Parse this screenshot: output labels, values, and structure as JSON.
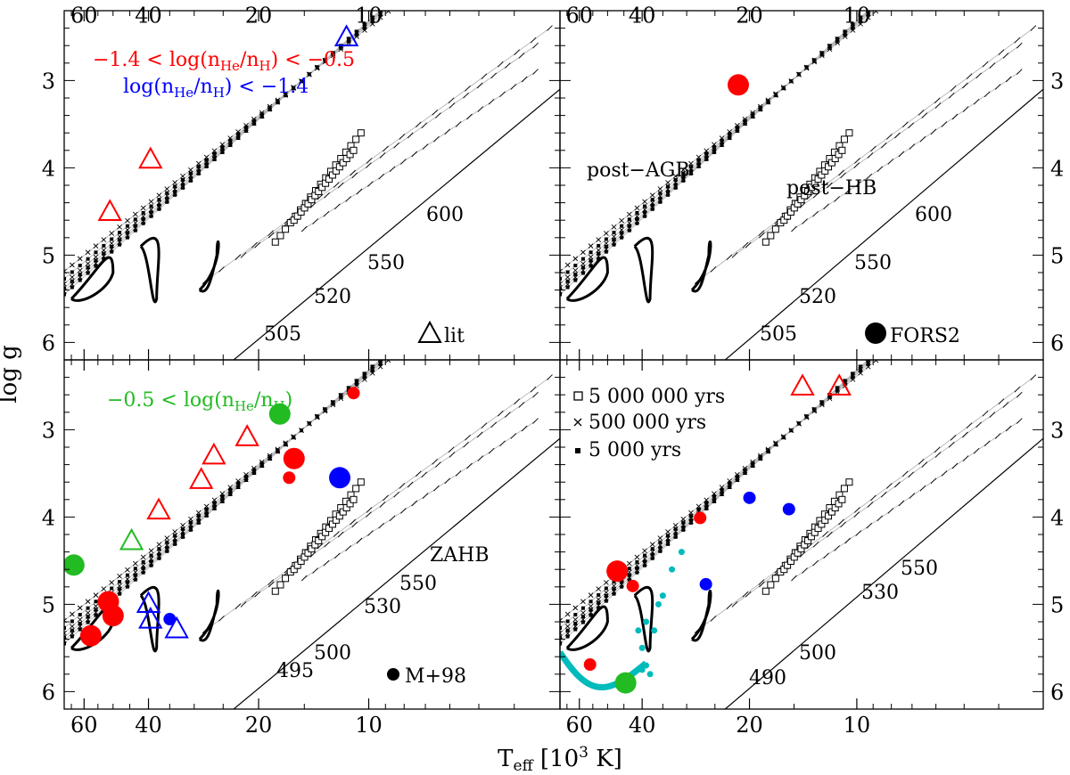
{
  "chart_data": {
    "type": "scatter",
    "axes": {
      "xlabel": "T_eff [10^3 K]",
      "xlabel_main": "T",
      "xlabel_sub": "eff",
      "xlabel_rest": " [10",
      "xlabel_sup": "3",
      "xlabel_end": " K]",
      "ylabel": "log g",
      "xlim": [
        68,
        3
      ],
      "ylim": [
        2.2,
        6.2
      ],
      "x_ticks": [
        60,
        40,
        20,
        10
      ],
      "y_ticks": [
        3,
        4,
        5,
        6
      ]
    },
    "colors": {
      "red": "#ff0000",
      "blue": "#0000ff",
      "green": "#22bb22",
      "cyan": "#00bbbb",
      "track": "#bbbbbb",
      "ink": "#000000"
    },
    "panels": [
      {
        "id": "top-left",
        "annotations": [
          {
            "text": "−1.4 < log(n",
            "sub": "He",
            "mid": "/n",
            "sub2": "H",
            "end": ") < −0.5",
            "color": "red"
          },
          {
            "text": "log(n",
            "sub": "He",
            "mid": "/n",
            "sub2": "H",
            "end": ") < −1.4",
            "color": "blue"
          }
        ],
        "legend": {
          "symbol": "triangle",
          "label": "lit"
        },
        "mass_labels": [
          "505",
          "520",
          "550",
          "600"
        ],
        "triangles": [
          {
            "teff": 51,
            "logg": 4.5,
            "color": "red"
          },
          {
            "teff": 39.5,
            "logg": 3.9,
            "color": "red"
          },
          {
            "teff": 11.5,
            "logg": 2.5,
            "color": "blue"
          }
        ],
        "circles": []
      },
      {
        "id": "top-right",
        "labels": [
          "post−AGB",
          "post−HB"
        ],
        "legend": {
          "symbol": "circle",
          "label": "FORS2"
        },
        "mass_labels": [
          "505",
          "520",
          "550",
          "600"
        ],
        "triangles": [],
        "circles": [
          {
            "teff": 21.5,
            "logg": 3.05,
            "color": "red",
            "size": "large"
          }
        ]
      },
      {
        "id": "bottom-left",
        "annotations": [
          {
            "text": "−0.5 < log(n",
            "sub": "He",
            "mid": "/n",
            "sub2": "H",
            "end": ")",
            "color": "green"
          }
        ],
        "labels": [
          "ZAHB"
        ],
        "legend": {
          "symbol": "circle",
          "label": "M+98"
        },
        "mass_labels": [
          "495",
          "500",
          "530",
          "550"
        ],
        "triangles": [
          {
            "teff": 44.5,
            "logg": 4.27,
            "color": "green"
          },
          {
            "teff": 37.5,
            "logg": 3.92,
            "color": "red"
          },
          {
            "teff": 28.7,
            "logg": 3.57,
            "color": "red"
          },
          {
            "teff": 26.5,
            "logg": 3.29,
            "color": "red"
          },
          {
            "teff": 21.5,
            "logg": 3.08,
            "color": "red"
          },
          {
            "teff": 40.0,
            "logg": 4.99,
            "color": "blue"
          },
          {
            "teff": 39.5,
            "logg": 5.17,
            "color": "blue"
          },
          {
            "teff": 33.5,
            "logg": 5.28,
            "color": "blue"
          }
        ],
        "circles": [
          {
            "teff": 64.0,
            "logg": 4.55,
            "color": "green",
            "size": "large"
          },
          {
            "teff": 17.5,
            "logg": 2.82,
            "color": "green",
            "size": "large"
          },
          {
            "teff": 57.5,
            "logg": 5.36,
            "color": "red",
            "size": "large"
          },
          {
            "teff": 51.5,
            "logg": 4.97,
            "color": "red",
            "size": "large"
          },
          {
            "teff": 50.0,
            "logg": 5.13,
            "color": "red",
            "size": "large"
          },
          {
            "teff": 16.0,
            "logg": 3.33,
            "color": "red",
            "size": "large"
          },
          {
            "teff": 16.5,
            "logg": 3.55,
            "color": "red",
            "size": "small"
          },
          {
            "teff": 11.0,
            "logg": 2.58,
            "color": "red",
            "size": "small"
          },
          {
            "teff": 12.0,
            "logg": 3.55,
            "color": "blue",
            "size": "large"
          },
          {
            "teff": 35.0,
            "logg": 5.17,
            "color": "blue",
            "size": "small"
          }
        ]
      },
      {
        "id": "bottom-right",
        "legend_entries": [
          {
            "symbol": "square",
            "label": "5 000 000 yrs"
          },
          {
            "symbol": "cross",
            "label": "500 000 yrs"
          },
          {
            "symbol": "dot",
            "label": "5 000 yrs"
          }
        ],
        "mass_labels": [
          "490",
          "500",
          "530",
          "550"
        ],
        "triangles": [
          {
            "teff": 14.2,
            "logg": 2.5,
            "color": "red"
          },
          {
            "teff": 11.2,
            "logg": 2.5,
            "color": "red"
          }
        ],
        "circles": [
          {
            "teff": 47.0,
            "logg": 4.62,
            "color": "red",
            "size": "large"
          },
          {
            "teff": 42.5,
            "logg": 4.79,
            "color": "red",
            "size": "small"
          },
          {
            "teff": 56.0,
            "logg": 5.69,
            "color": "red",
            "size": "small"
          },
          {
            "teff": 27.5,
            "logg": 4.01,
            "color": "red",
            "size": "small"
          },
          {
            "teff": 20.0,
            "logg": 3.78,
            "color": "blue",
            "size": "small"
          },
          {
            "teff": 15.5,
            "logg": 3.91,
            "color": "blue",
            "size": "small"
          },
          {
            "teff": 26.5,
            "logg": 4.77,
            "color": "blue",
            "size": "small"
          },
          {
            "teff": 44.5,
            "logg": 5.9,
            "color": "green",
            "size": "large"
          }
        ]
      }
    ]
  }
}
